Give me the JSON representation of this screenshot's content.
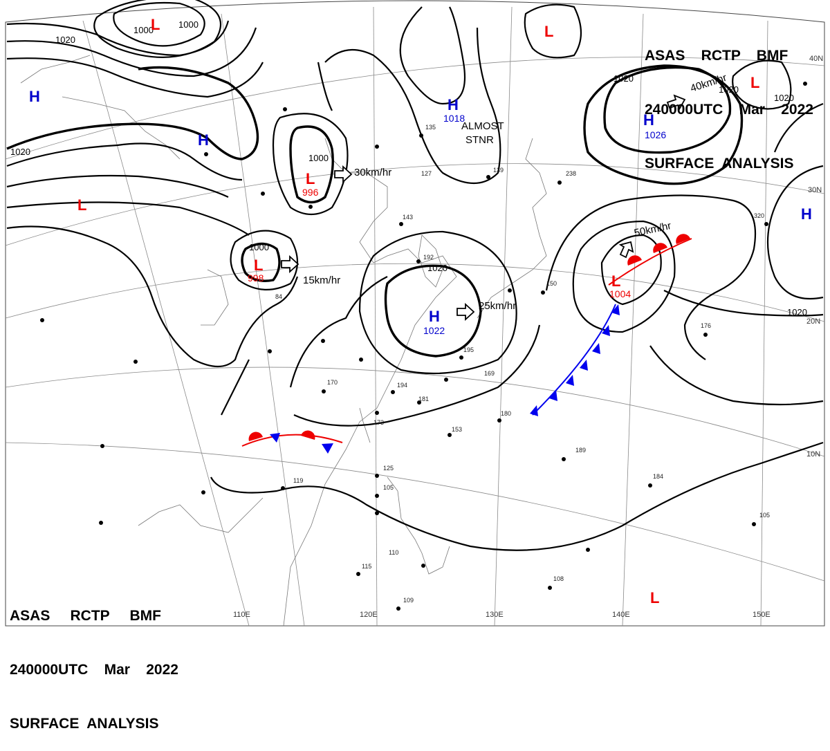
{
  "header_top_right": {
    "line1": "ASAS    RCTP    BMF",
    "line2": "240000UTC    Mar    2022",
    "line3": "SURFACE  ANALYSIS"
  },
  "header_bottom_left": {
    "line1": "ASAS     RCTP     BMF",
    "line2": "240000UTC    Mar    2022",
    "line3": "SURFACE  ANALYSIS"
  },
  "colors": {
    "high": "#0000cc",
    "low": "#ee0000",
    "warm_front": "#ee0000",
    "cold_front": "#0000ee",
    "isobar": "#000000"
  },
  "longitude_labels": [
    "110E",
    "120E",
    "130E",
    "140E",
    "150E"
  ],
  "latitude_labels": [
    "40N",
    "30N",
    "20N",
    "10N"
  ],
  "pressure_centers": [
    {
      "type": "H",
      "value": "1018"
    },
    {
      "type": "H",
      "value": "1026"
    },
    {
      "type": "H",
      "value": "1022"
    },
    {
      "type": "H",
      "value": ""
    },
    {
      "type": "H",
      "value": ""
    },
    {
      "type": "H",
      "value": ""
    },
    {
      "type": "L",
      "value": "996"
    },
    {
      "type": "L",
      "value": "998"
    },
    {
      "type": "L",
      "value": "1004"
    },
    {
      "type": "L",
      "value": ""
    },
    {
      "type": "L",
      "value": ""
    },
    {
      "type": "L",
      "value": ""
    },
    {
      "type": "L",
      "value": ""
    },
    {
      "type": "L",
      "value": ""
    }
  ],
  "motion_labels": [
    "30km/hr",
    "15km/hr",
    "25km/hr",
    "40km/hr",
    "50km/hr"
  ],
  "special_text": [
    "ALMOST",
    "STNR"
  ],
  "isobar_labels": [
    "1020",
    "1000",
    "1000",
    "1020",
    "1020",
    "1000",
    "1000",
    "1020",
    "1020",
    "1020",
    "1020"
  ],
  "station_reports": [
    "135",
    "127",
    "139",
    "143",
    "192",
    "170",
    "194",
    "181",
    "153",
    "195",
    "169",
    "189",
    "176",
    "320",
    "238",
    "150",
    "180",
    "173",
    "84",
    "125",
    "119",
    "110",
    "105",
    "115",
    "108",
    "109",
    "184",
    "105"
  ]
}
